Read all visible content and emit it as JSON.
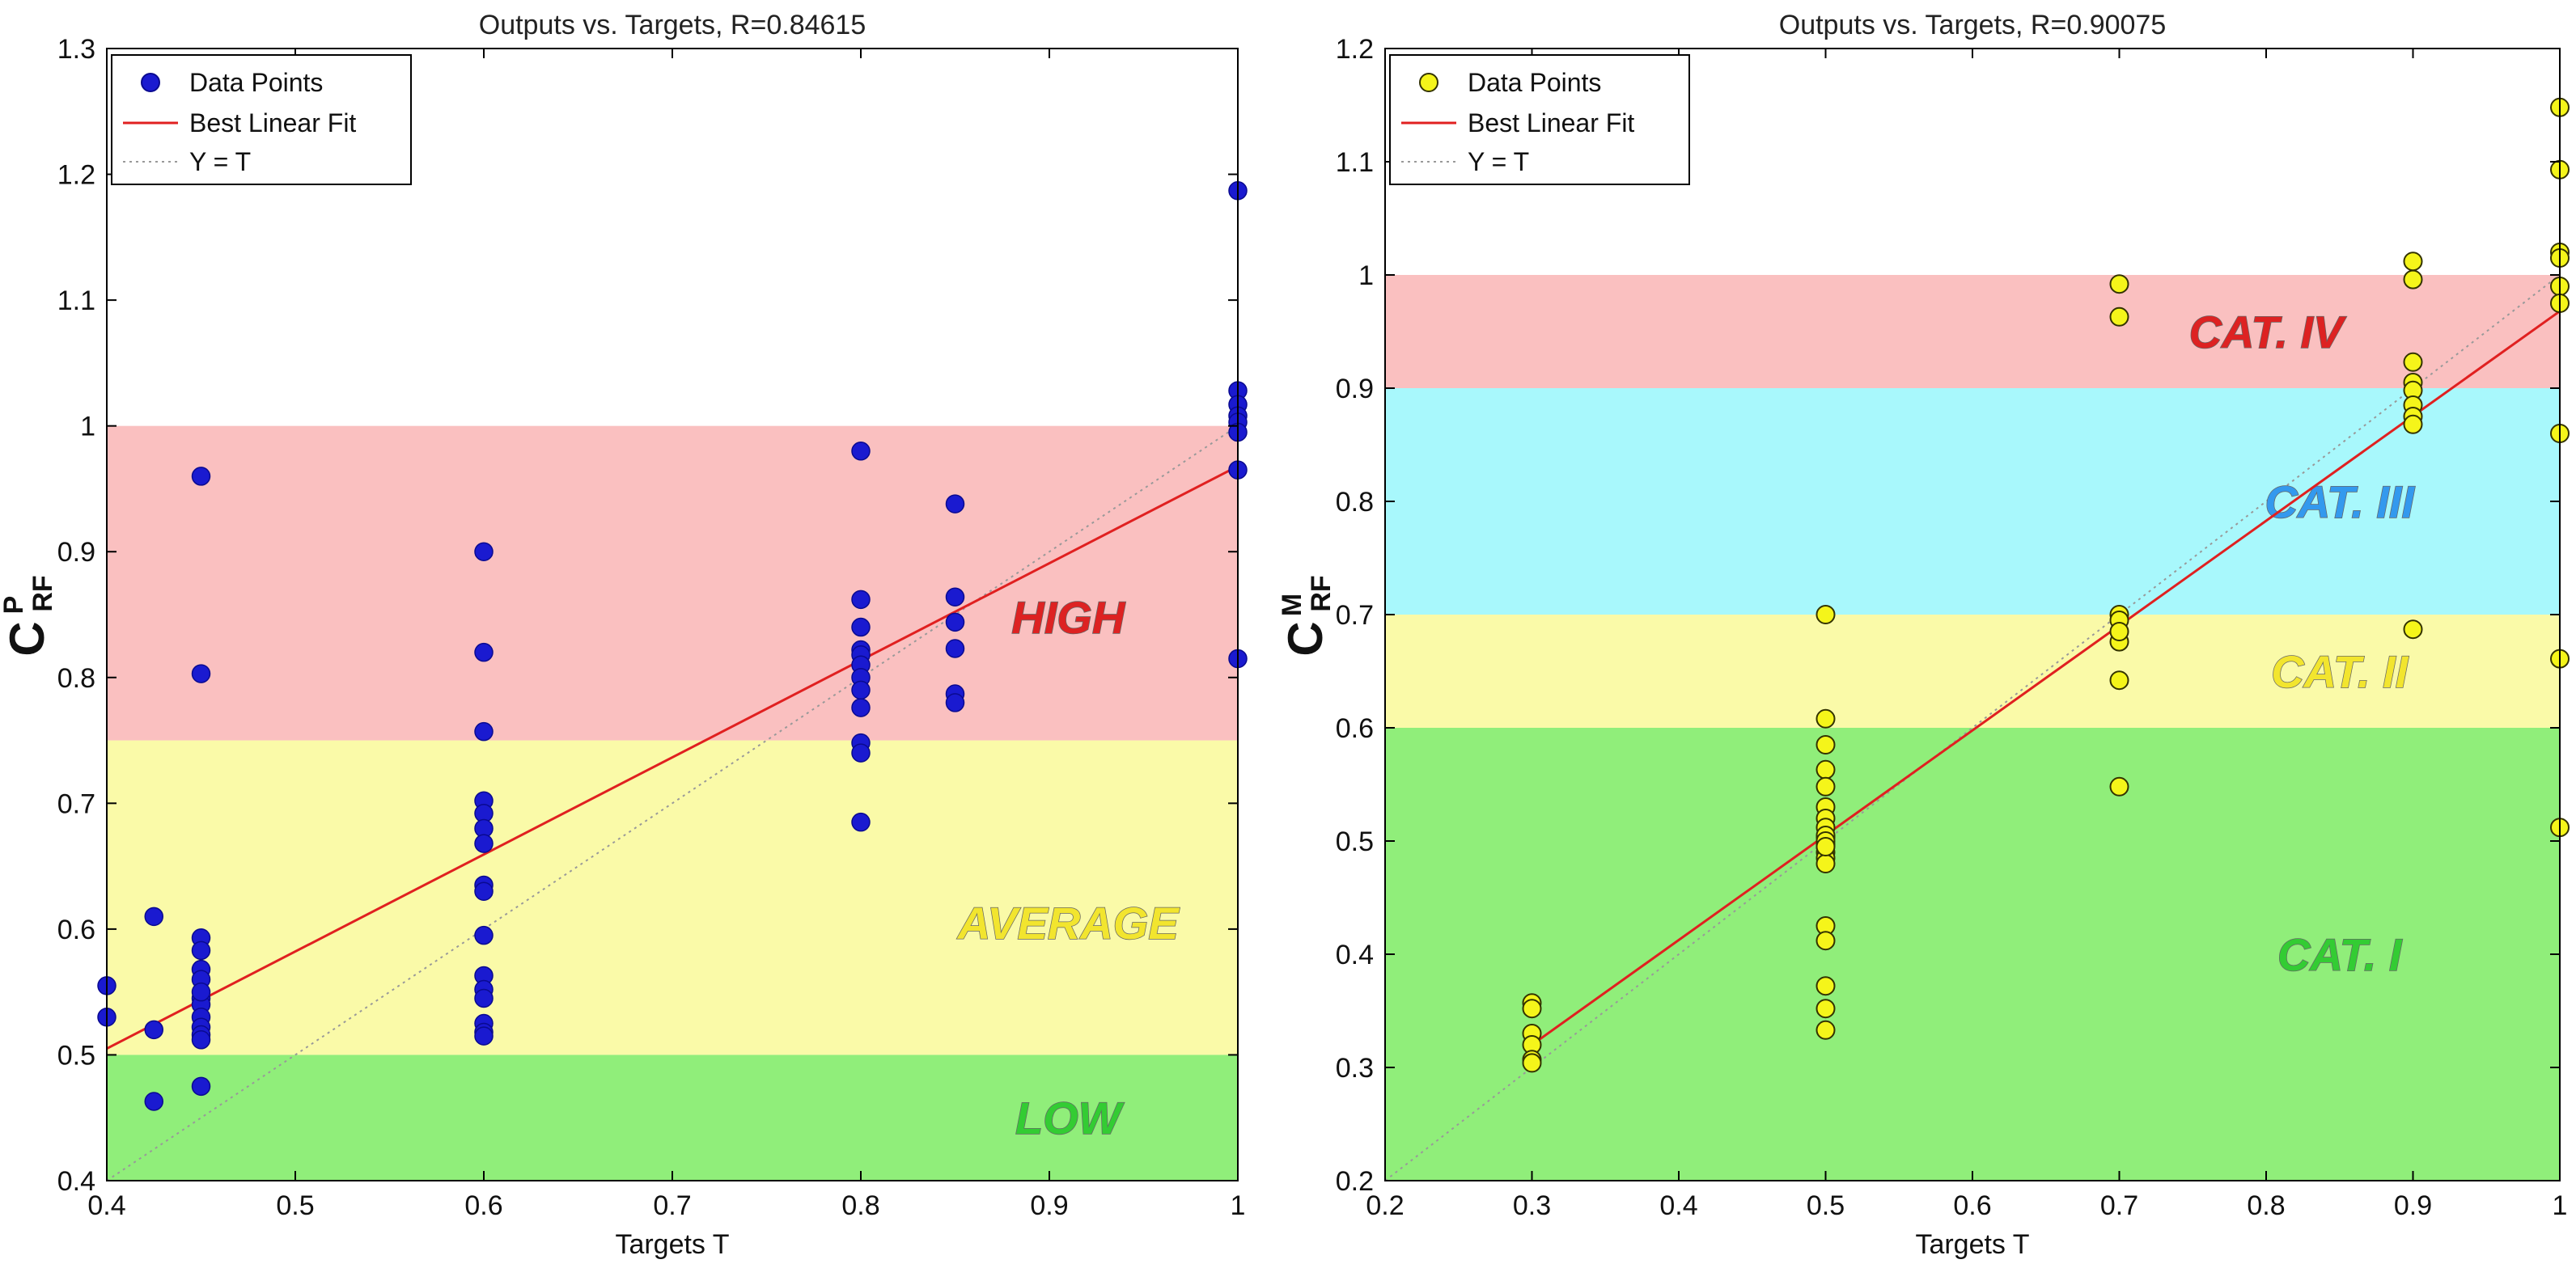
{
  "chart_data": [
    {
      "type": "scatter",
      "title": "Outputs vs. Targets, R=0.84615",
      "xlabel": "Targets T",
      "ylabel_main": "C",
      "ylabel_sup": "P",
      "ylabel_sub": "RF",
      "xlim": [
        0.4,
        1.0
      ],
      "ylim": [
        0.4,
        1.3
      ],
      "xticks": [
        0.4,
        0.5,
        0.6,
        0.7,
        0.8,
        0.9,
        1.0
      ],
      "xtick_labels": [
        "0.4",
        "0.5",
        "0.6",
        "0.7",
        "0.8",
        "0.9",
        "1"
      ],
      "yticks": [
        0.4,
        0.5,
        0.6,
        0.7,
        0.8,
        0.9,
        1.0,
        1.1,
        1.2,
        1.3
      ],
      "ytick_labels": [
        "0.4",
        "0.5",
        "0.6",
        "0.7",
        "0.8",
        "0.9",
        "1",
        "1.1",
        "1.2",
        "1.3"
      ],
      "bands": [
        {
          "label": "LOW",
          "y_from": 0.4,
          "y_to": 0.5,
          "fill": "#90ee7a",
          "text_color": "#33cc33",
          "label_x": 0.91,
          "label_y": 0.45
        },
        {
          "label": "AVERAGE",
          "y_from": 0.5,
          "y_to": 0.75,
          "fill": "#fafaa8",
          "text_color": "#f2e52e",
          "label_x": 0.91,
          "label_y": 0.605
        },
        {
          "label": "HIGH",
          "y_from": 0.75,
          "y_to": 1.0,
          "fill": "#fac0c0",
          "text_color": "#dd2222",
          "label_x": 0.91,
          "label_y": 0.848
        }
      ],
      "marker_color": "#1a1ad0",
      "marker_edge": "#0a0a90",
      "marker_style": "filled",
      "fit_line": {
        "x": [
          0.4,
          1.0
        ],
        "y": [
          0.505,
          0.968
        ],
        "color": "#e02020"
      },
      "identity_line": {
        "x": [
          0.4,
          1.0
        ],
        "y": [
          0.4,
          1.0
        ],
        "color": "#999999"
      },
      "legend": {
        "position": "top-left",
        "entries": [
          "Data Points",
          "Best Linear Fit",
          "Y = T"
        ]
      },
      "series": [
        {
          "name": "Data Points",
          "x": [
            0.4,
            0.4,
            0.425,
            0.425,
            0.425,
            0.45,
            0.45,
            0.45,
            0.45,
            0.45,
            0.45,
            0.45,
            0.45,
            0.45,
            0.45,
            0.45,
            0.45,
            0.45,
            0.45,
            0.6,
            0.6,
            0.6,
            0.6,
            0.6,
            0.6,
            0.6,
            0.6,
            0.6,
            0.6,
            0.6,
            0.6,
            0.6,
            0.6,
            0.6,
            0.6,
            0.8,
            0.8,
            0.8,
            0.8,
            0.8,
            0.8,
            0.8,
            0.8,
            0.8,
            0.8,
            0.8,
            0.8,
            0.85,
            0.85,
            0.85,
            0.85,
            0.85,
            0.85,
            1.0,
            1.0,
            1.0,
            1.0,
            1.0,
            1.0,
            1.0,
            1.0
          ],
          "y": [
            0.555,
            0.53,
            0.61,
            0.52,
            0.463,
            0.96,
            0.803,
            0.593,
            0.583,
            0.568,
            0.56,
            0.545,
            0.54,
            0.53,
            0.522,
            0.516,
            0.512,
            0.475,
            0.55,
            0.9,
            0.82,
            0.757,
            0.702,
            0.692,
            0.68,
            0.668,
            0.635,
            0.63,
            0.595,
            0.563,
            0.552,
            0.545,
            0.525,
            0.518,
            0.515,
            0.98,
            0.862,
            0.84,
            0.822,
            0.818,
            0.81,
            0.8,
            0.79,
            0.776,
            0.748,
            0.74,
            0.685,
            0.938,
            0.864,
            0.844,
            0.823,
            0.787,
            0.78,
            1.187,
            1.028,
            1.017,
            1.008,
            1.003,
            0.995,
            0.965,
            0.815
          ]
        }
      ]
    },
    {
      "type": "scatter",
      "title": "Outputs vs. Targets, R=0.90075",
      "xlabel": "Targets T",
      "ylabel_main": "C",
      "ylabel_sup": "M",
      "ylabel_sub": "RF",
      "xlim": [
        0.2,
        1.0
      ],
      "ylim": [
        0.2,
        1.2
      ],
      "xticks": [
        0.2,
        0.3,
        0.4,
        0.5,
        0.6,
        0.7,
        0.8,
        0.9,
        1.0
      ],
      "xtick_labels": [
        "0.2",
        "0.3",
        "0.4",
        "0.5",
        "0.6",
        "0.7",
        "0.8",
        "0.9",
        "1"
      ],
      "yticks": [
        0.2,
        0.3,
        0.4,
        0.5,
        0.6,
        0.7,
        0.8,
        0.9,
        1.0,
        1.1,
        1.2
      ],
      "ytick_labels": [
        "0.2",
        "0.3",
        "0.4",
        "0.5",
        "0.6",
        "0.7",
        "0.8",
        "0.9",
        "1",
        "1.1",
        "1.2"
      ],
      "bands": [
        {
          "label": "CAT. I",
          "y_from": 0.2,
          "y_to": 0.6,
          "fill": "#90ee7a",
          "text_color": "#33cc33",
          "label_x": 0.85,
          "label_y": 0.4
        },
        {
          "label": "CAT. II",
          "y_from": 0.6,
          "y_to": 0.7,
          "fill": "#fafaa8",
          "text_color": "#f2e52e",
          "label_x": 0.85,
          "label_y": 0.65
        },
        {
          "label": "CAT. III",
          "y_from": 0.7,
          "y_to": 0.9,
          "fill": "#a8f8fc",
          "text_color": "#3399ee",
          "label_x": 0.85,
          "label_y": 0.8
        },
        {
          "label": "CAT. IV",
          "y_from": 0.9,
          "y_to": 1.0,
          "fill": "#fac0c0",
          "text_color": "#dd2222",
          "label_x": 0.8,
          "label_y": 0.95
        }
      ],
      "marker_color": "#f5f51a",
      "marker_edge": "#333300",
      "marker_style": "open",
      "fit_line": {
        "x": [
          0.3,
          1.0
        ],
        "y": [
          0.32,
          0.968
        ],
        "color": "#e02020"
      },
      "identity_line": {
        "x": [
          0.2,
          1.0
        ],
        "y": [
          0.2,
          1.0
        ],
        "color": "#999999"
      },
      "legend": {
        "position": "top-left",
        "entries": [
          "Data Points",
          "Best Linear Fit",
          "Y = T"
        ]
      },
      "series": [
        {
          "name": "Data Points",
          "x": [
            0.3,
            0.3,
            0.3,
            0.3,
            0.3,
            0.3,
            0.5,
            0.5,
            0.5,
            0.5,
            0.5,
            0.5,
            0.5,
            0.5,
            0.5,
            0.5,
            0.5,
            0.5,
            0.5,
            0.5,
            0.5,
            0.5,
            0.5,
            0.5,
            0.5,
            0.5,
            0.5,
            0.7,
            0.7,
            0.7,
            0.7,
            0.7,
            0.7,
            0.7,
            0.7,
            0.9,
            0.9,
            0.9,
            0.9,
            0.9,
            0.9,
            0.9,
            0.9,
            0.9,
            1.0,
            1.0,
            1.0,
            1.0,
            1.0,
            1.0,
            1.0,
            1.0,
            1.0
          ],
          "y": [
            0.357,
            0.352,
            0.33,
            0.32,
            0.307,
            0.304,
            0.7,
            0.608,
            0.585,
            0.563,
            0.548,
            0.53,
            0.52,
            0.512,
            0.503,
            0.497,
            0.49,
            0.485,
            0.48,
            0.425,
            0.412,
            0.372,
            0.352,
            0.333,
            0.505,
            0.5,
            0.495,
            0.992,
            0.963,
            0.7,
            0.695,
            0.676,
            0.642,
            0.548,
            0.685,
            1.012,
            0.996,
            0.923,
            0.905,
            0.898,
            0.885,
            0.875,
            0.868,
            0.687,
            1.148,
            1.093,
            1.02,
            1.015,
            0.99,
            0.975,
            0.86,
            0.661,
            0.512
          ]
        }
      ]
    }
  ]
}
